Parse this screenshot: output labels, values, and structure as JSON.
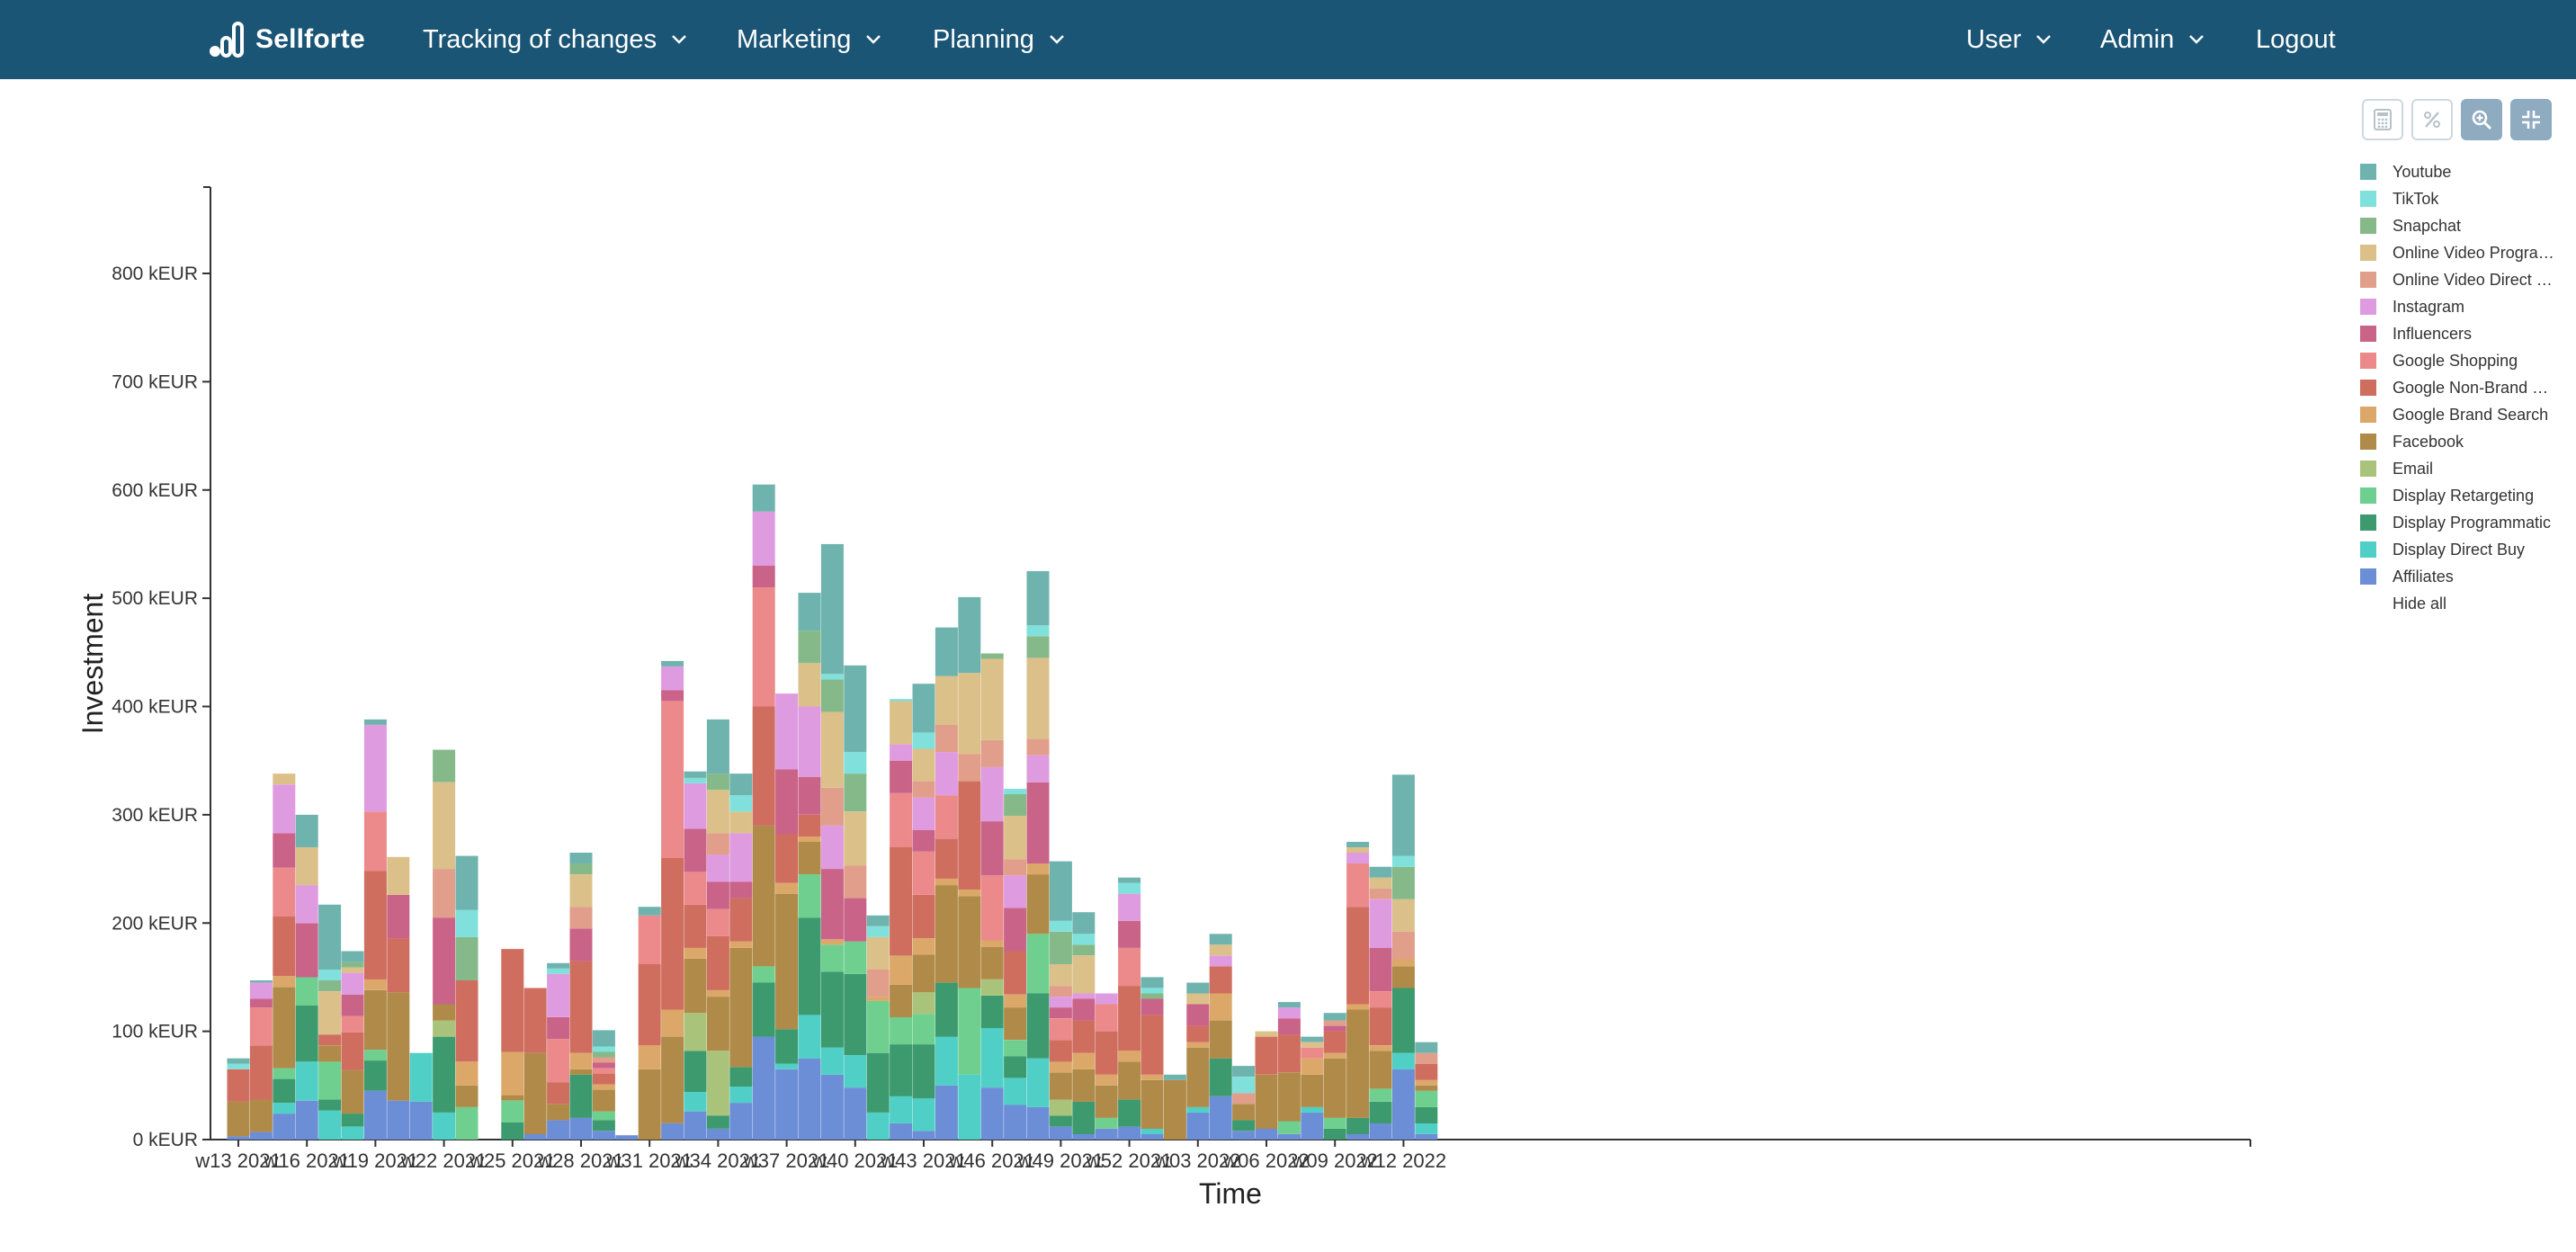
{
  "header": {
    "logo_text": "Sellforte",
    "nav": [
      {
        "label": "Tracking of changes"
      },
      {
        "label": "Marketing"
      },
      {
        "label": "Planning"
      }
    ],
    "right": [
      {
        "label": "User"
      },
      {
        "label": "Admin"
      },
      {
        "label": "Logout"
      }
    ]
  },
  "toolbar": {
    "buttons": [
      {
        "icon": "calculator-icon"
      },
      {
        "icon": "percent-icon"
      },
      {
        "icon": "zoom-icon"
      },
      {
        "icon": "compress-icon"
      }
    ]
  },
  "legend": {
    "hide_all_label": "Hide all"
  },
  "colors": {
    "navbar": "#1b5575"
  },
  "chart_data": {
    "type": "bar",
    "stacked": true,
    "xlabel": "Time",
    "ylabel": "Investment",
    "ylim": [
      0,
      900
    ],
    "yticks": [
      0,
      100,
      200,
      300,
      400,
      500,
      600,
      700,
      800
    ],
    "y_tick_format": "{v} kEUR",
    "x_tick_labels": [
      "w13 2021",
      "w16 2021",
      "w19 2021",
      "w22 2021",
      "w25 2021",
      "w28 2021",
      "w31 2021",
      "w34 2021",
      "w37 2021",
      "w40 2021",
      "w43 2021",
      "w46 2021",
      "w49 2021",
      "w52 2021",
      "w03 2022",
      "w06 2022",
      "w09 2022",
      "w12 2022"
    ],
    "x_tick_every": 3,
    "categories": [
      "w13 2021",
      "w14 2021",
      "w15 2021",
      "w16 2021",
      "w17 2021",
      "w18 2021",
      "w19 2021",
      "w20 2021",
      "w21 2021",
      "w22 2021",
      "w23 2021",
      "w24 2021",
      "w25 2021",
      "w26 2021",
      "w27 2021",
      "w28 2021",
      "w29 2021",
      "w30 2021",
      "w31 2021",
      "w32 2021",
      "w33 2021",
      "w34 2021",
      "w35 2021",
      "w36 2021",
      "w37 2021",
      "w38 2021",
      "w39 2021",
      "w40 2021",
      "w41 2021",
      "w42 2021",
      "w43 2021",
      "w44 2021",
      "w45 2021",
      "w46 2021",
      "w47 2021",
      "w48 2021",
      "w49 2021",
      "w50 2021",
      "w51 2021",
      "w52 2021",
      "w01 2022",
      "w02 2022",
      "w03 2022",
      "w04 2022",
      "w05 2022",
      "w06 2022",
      "w07 2022",
      "w08 2022",
      "w09 2022",
      "w10 2022",
      "w11 2022",
      "w12 2022",
      "w13 2022"
    ],
    "series": [
      {
        "name": "Affiliates",
        "color": "#6c8ed6",
        "values": [
          3,
          7,
          24,
          36,
          0,
          0,
          45,
          36,
          35,
          0,
          0,
          0,
          0,
          5,
          18,
          20,
          8,
          4,
          0,
          15,
          26,
          10,
          34,
          95,
          65,
          75,
          60,
          48,
          0,
          15,
          8,
          50,
          0,
          48,
          32,
          30,
          12,
          5,
          10,
          12,
          5,
          0,
          25,
          40,
          8,
          10,
          5,
          25,
          0,
          5,
          15,
          65,
          5
        ]
      },
      {
        "name": "Display Direct Buy",
        "color": "#4fcfc6",
        "values": [
          0,
          0,
          10,
          36,
          27,
          12,
          0,
          0,
          45,
          25,
          0,
          0,
          0,
          0,
          0,
          0,
          0,
          0,
          0,
          0,
          18,
          0,
          15,
          0,
          5,
          40,
          25,
          30,
          25,
          25,
          30,
          45,
          60,
          55,
          25,
          45,
          0,
          0,
          0,
          0,
          5,
          0,
          5,
          0,
          0,
          0,
          0,
          5,
          0,
          0,
          0,
          15,
          10
        ]
      },
      {
        "name": "Display Programmatic",
        "color": "#3c9a6e",
        "values": [
          0,
          0,
          22,
          52,
          10,
          12,
          28,
          0,
          0,
          70,
          0,
          0,
          16,
          0,
          0,
          40,
          10,
          0,
          0,
          0,
          38,
          12,
          18,
          50,
          32,
          90,
          70,
          75,
          55,
          48,
          50,
          50,
          0,
          30,
          20,
          60,
          10,
          30,
          0,
          25,
          0,
          0,
          0,
          35,
          10,
          0,
          0,
          0,
          10,
          15,
          20,
          60,
          15
        ]
      },
      {
        "name": "Display Retargeting",
        "color": "#6fcf8f",
        "values": [
          0,
          0,
          10,
          26,
          35,
          0,
          10,
          0,
          0,
          0,
          30,
          0,
          20,
          0,
          0,
          0,
          8,
          0,
          0,
          0,
          0,
          0,
          0,
          15,
          0,
          40,
          25,
          30,
          48,
          25,
          28,
          0,
          80,
          0,
          15,
          55,
          0,
          0,
          10,
          0,
          0,
          0,
          0,
          0,
          0,
          0,
          12,
          0,
          10,
          0,
          12,
          0,
          15
        ]
      },
      {
        "name": "Email",
        "color": "#a9c47a",
        "values": [
          0,
          0,
          0,
          0,
          0,
          0,
          0,
          0,
          0,
          15,
          0,
          0,
          0,
          0,
          0,
          0,
          0,
          0,
          0,
          0,
          35,
          60,
          0,
          0,
          0,
          0,
          0,
          0,
          0,
          0,
          20,
          0,
          0,
          15,
          0,
          0,
          15,
          0,
          0,
          0,
          0,
          0,
          0,
          0,
          0,
          0,
          0,
          0,
          0,
          0,
          0,
          0,
          0
        ]
      },
      {
        "name": "Facebook",
        "color": "#b08a48",
        "values": [
          32,
          30,
          75,
          0,
          15,
          40,
          55,
          100,
          0,
          15,
          20,
          0,
          5,
          75,
          15,
          5,
          20,
          0,
          65,
          80,
          50,
          50,
          110,
          130,
          125,
          30,
          0,
          0,
          0,
          30,
          35,
          90,
          85,
          30,
          30,
          55,
          25,
          30,
          30,
          35,
          45,
          55,
          55,
          35,
          15,
          50,
          45,
          30,
          55,
          100,
          35,
          20,
          5
        ]
      },
      {
        "name": "Google Brand Search",
        "color": "#dca86a",
        "values": [
          0,
          0,
          10,
          0,
          0,
          0,
          10,
          0,
          0,
          0,
          22,
          0,
          40,
          0,
          0,
          15,
          5,
          0,
          22,
          25,
          10,
          6,
          6,
          0,
          10,
          5,
          5,
          0,
          4,
          27,
          15,
          6,
          6,
          6,
          12,
          10,
          10,
          15,
          10,
          10,
          5,
          0,
          5,
          25,
          0,
          0,
          0,
          15,
          5,
          5,
          5,
          7,
          5
        ]
      },
      {
        "name": "Google Non-Brand Search",
        "color": "#cf6d5e",
        "values": [
          30,
          50,
          55,
          0,
          10,
          35,
          100,
          50,
          0,
          0,
          75,
          0,
          95,
          60,
          20,
          85,
          10,
          0,
          75,
          140,
          40,
          50,
          40,
          110,
          45,
          20,
          0,
          0,
          0,
          100,
          40,
          37,
          100,
          0,
          40,
          0,
          20,
          30,
          40,
          60,
          55,
          0,
          15,
          25,
          0,
          35,
          35,
          0,
          20,
          90,
          35,
          0,
          15
        ]
      },
      {
        "name": "Google Shopping",
        "color": "#ec8a8b",
        "values": [
          0,
          35,
          45,
          0,
          0,
          15,
          55,
          0,
          0,
          0,
          0,
          0,
          0,
          0,
          40,
          0,
          5,
          0,
          45,
          145,
          30,
          25,
          0,
          110,
          0,
          0,
          0,
          0,
          0,
          50,
          40,
          40,
          0,
          60,
          0,
          0,
          20,
          0,
          25,
          35,
          0,
          0,
          0,
          0,
          0,
          0,
          0,
          10,
          0,
          40,
          15,
          0,
          0
        ]
      },
      {
        "name": "Influencers",
        "color": "#ca6388",
        "values": [
          0,
          8,
          32,
          50,
          0,
          20,
          0,
          40,
          0,
          80,
          0,
          0,
          0,
          0,
          20,
          30,
          5,
          0,
          0,
          10,
          40,
          25,
          15,
          20,
          60,
          35,
          65,
          40,
          0,
          30,
          20,
          0,
          0,
          50,
          40,
          75,
          10,
          20,
          0,
          25,
          15,
          0,
          20,
          0,
          0,
          0,
          15,
          0,
          5,
          0,
          40,
          0,
          0
        ]
      },
      {
        "name": "Instagram",
        "color": "#df9be0",
        "values": [
          0,
          15,
          45,
          35,
          0,
          20,
          80,
          0,
          0,
          0,
          0,
          0,
          0,
          0,
          40,
          0,
          0,
          0,
          0,
          22,
          42,
          25,
          45,
          50,
          70,
          65,
          40,
          0,
          0,
          15,
          30,
          40,
          0,
          50,
          30,
          25,
          10,
          5,
          10,
          25,
          0,
          0,
          0,
          10,
          0,
          0,
          10,
          0,
          0,
          10,
          45,
          0,
          0
        ]
      },
      {
        "name": "Online Video Direct Buy",
        "color": "#e09e8b",
        "values": [
          0,
          0,
          0,
          0,
          0,
          0,
          0,
          0,
          0,
          45,
          0,
          0,
          0,
          0,
          0,
          20,
          5,
          0,
          0,
          0,
          0,
          20,
          0,
          0,
          0,
          0,
          35,
          30,
          25,
          0,
          15,
          25,
          25,
          25,
          15,
          15,
          10,
          0,
          0,
          0,
          0,
          0,
          0,
          0,
          10,
          0,
          0,
          0,
          5,
          0,
          10,
          25,
          10
        ]
      },
      {
        "name": "Online Video Programmatic",
        "color": "#dcc08a",
        "values": [
          0,
          0,
          10,
          35,
          40,
          5,
          0,
          35,
          0,
          80,
          0,
          0,
          0,
          0,
          0,
          30,
          0,
          0,
          0,
          0,
          0,
          40,
          20,
          0,
          0,
          40,
          70,
          50,
          30,
          40,
          30,
          45,
          75,
          75,
          40,
          75,
          20,
          35,
          0,
          0,
          0,
          0,
          10,
          10,
          0,
          5,
          0,
          5,
          0,
          5,
          10,
          30,
          0
        ]
      },
      {
        "name": "Snapchat",
        "color": "#86b98a",
        "values": [
          0,
          0,
          0,
          0,
          10,
          5,
          0,
          0,
          0,
          30,
          40,
          0,
          0,
          0,
          0,
          10,
          5,
          0,
          0,
          0,
          0,
          15,
          0,
          0,
          0,
          30,
          30,
          35,
          0,
          0,
          0,
          0,
          0,
          5,
          20,
          20,
          30,
          10,
          0,
          0,
          5,
          0,
          0,
          0,
          0,
          0,
          0,
          0,
          0,
          0,
          0,
          30,
          0
        ]
      },
      {
        "name": "TikTok",
        "color": "#7fe0dc",
        "values": [
          5,
          0,
          0,
          0,
          10,
          0,
          0,
          0,
          0,
          0,
          25,
          0,
          0,
          0,
          5,
          0,
          5,
          0,
          0,
          0,
          5,
          0,
          15,
          0,
          0,
          0,
          5,
          20,
          10,
          2,
          15,
          0,
          0,
          0,
          5,
          10,
          10,
          10,
          0,
          10,
          5,
          0,
          0,
          0,
          15,
          0,
          0,
          0,
          0,
          0,
          0,
          10,
          0
        ]
      },
      {
        "name": "Youtube",
        "color": "#6fb3ae",
        "values": [
          5,
          2,
          0,
          30,
          60,
          10,
          5,
          0,
          0,
          0,
          50,
          0,
          0,
          0,
          5,
          10,
          15,
          0,
          8,
          5,
          6,
          50,
          20,
          25,
          0,
          35,
          120,
          80,
          10,
          0,
          45,
          45,
          70,
          0,
          0,
          50,
          55,
          20,
          0,
          5,
          10,
          5,
          10,
          10,
          10,
          0,
          5,
          5,
          7,
          5,
          10,
          75,
          10
        ]
      }
    ]
  }
}
